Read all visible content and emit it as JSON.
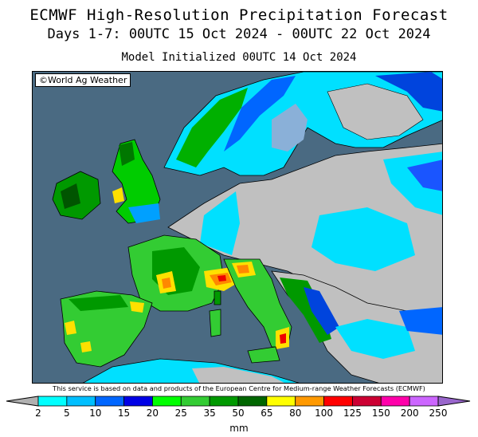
{
  "title": "ECMWF High-Resolution Precipitation Forecast",
  "subtitle": "Days 1-7: 00UTC 15 Oct 2024 - 00UTC 22 Oct 2024",
  "initialized": "Model Initialized 00UTC 14 Oct 2024",
  "copyright": "©World Ag Weather",
  "disclaimer": "This service is based on data and products of the European Centre for Medium-range Weather Forecasts (ECMWF)",
  "colorbar": {
    "units": "mm",
    "labels": [
      "2",
      "5",
      "10",
      "15",
      "20",
      "25",
      "35",
      "50",
      "65",
      "80",
      "100",
      "125",
      "150",
      "200",
      "250"
    ],
    "colors": [
      "#00ffff",
      "#00bfff",
      "#0066ff",
      "#0000e6",
      "#00ff00",
      "#33cc33",
      "#009900",
      "#006600",
      "#ffff00",
      "#ff9900",
      "#ff0000",
      "#cc0033",
      "#ff00aa",
      "#cc66ff"
    ],
    "under_color": "#b0b0b0",
    "over_color": "#9966cc"
  },
  "map_colors": {
    "sea": "#4a6a82",
    "land_dry": "#c0c0c0",
    "border": "#000000"
  }
}
